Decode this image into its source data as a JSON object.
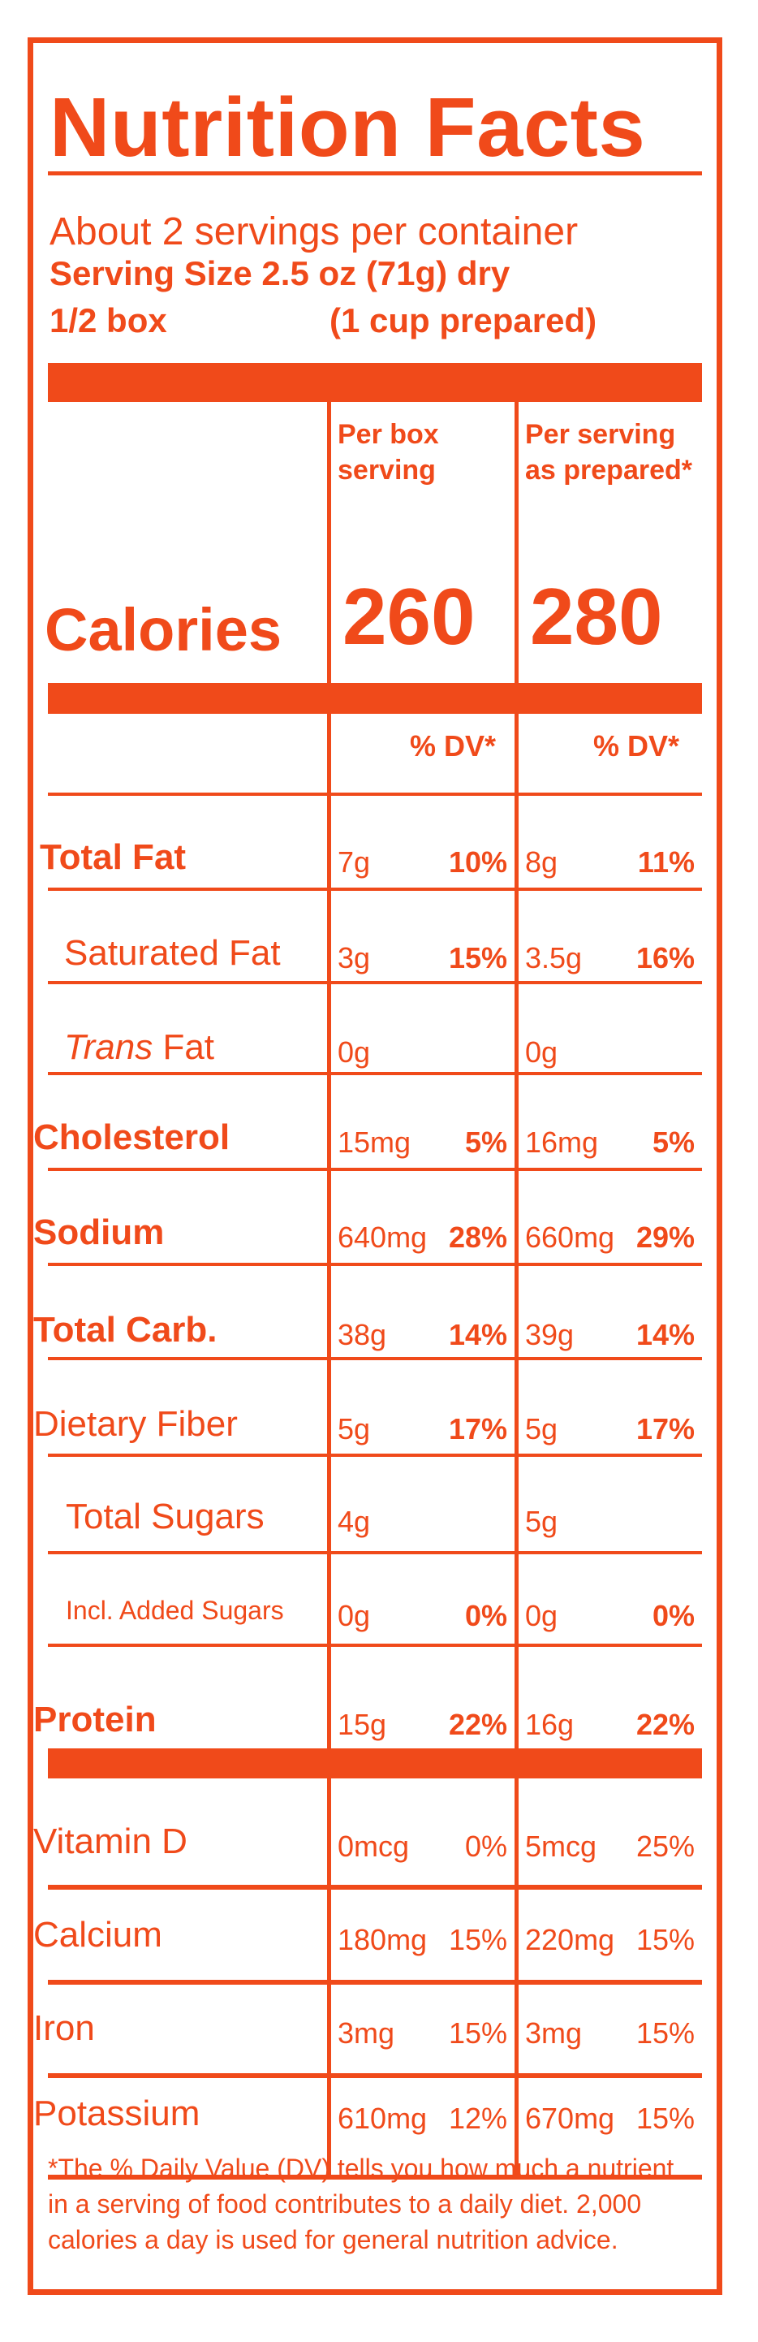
{
  "title": "Nutrition Facts",
  "servings_per_container": "About 2 servings per container",
  "serving_size": "Serving Size 2.5 oz (71g) dry",
  "box_label": "1/2 box",
  "prepared_label": "(1 cup prepared)",
  "col1_header_l1": "Per box",
  "col1_header_l2": "serving",
  "col2_header_l1": "Per serving",
  "col2_header_l2": "as prepared*",
  "calories_label": "Calories",
  "calories_box": "260",
  "calories_prepared": "280",
  "dv_header": "% DV*",
  "nutrients": [
    {
      "name": "Total Fat",
      "box_amt": "7g",
      "box_dv": "10%",
      "prep_amt": "8g",
      "prep_dv": "11%"
    },
    {
      "name": "Saturated Fat",
      "box_amt": "3g",
      "box_dv": "15%",
      "prep_amt": "3.5g",
      "prep_dv": "16%"
    },
    {
      "name_prefix": "Trans",
      "name": "Fat",
      "box_amt": "0g",
      "box_dv": "",
      "prep_amt": "0g",
      "prep_dv": ""
    },
    {
      "name": "Cholesterol",
      "box_amt": "15mg",
      "box_dv": "5%",
      "prep_amt": "16mg",
      "prep_dv": "5%"
    },
    {
      "name": "Sodium",
      "box_amt": "640mg",
      "box_dv": "28%",
      "prep_amt": "660mg",
      "prep_dv": "29%"
    },
    {
      "name": "Total Carb.",
      "box_amt": "38g",
      "box_dv": "14%",
      "prep_amt": "39g",
      "prep_dv": "14%"
    },
    {
      "name": "Dietary Fiber",
      "box_amt": "5g",
      "box_dv": "17%",
      "prep_amt": "5g",
      "prep_dv": "17%"
    },
    {
      "name": "Total Sugars",
      "box_amt": "4g",
      "box_dv": "",
      "prep_amt": "5g",
      "prep_dv": ""
    },
    {
      "name": "Incl. Added Sugars",
      "box_amt": "0g",
      "box_dv": "0%",
      "prep_amt": "0g",
      "prep_dv": "0%"
    },
    {
      "name": "Protein",
      "box_amt": "15g",
      "box_dv": "22%",
      "prep_amt": "16g",
      "prep_dv": "22%"
    }
  ],
  "vitamins": [
    {
      "name": "Vitamin D",
      "box_amt": "0mcg",
      "box_dv": "0%",
      "prep_amt": "5mcg",
      "prep_dv": "25%"
    },
    {
      "name": "Calcium",
      "box_amt": "180mg",
      "box_dv": "15%",
      "prep_amt": "220mg",
      "prep_dv": "15%"
    },
    {
      "name": "Iron",
      "box_amt": "3mg",
      "box_dv": "15%",
      "prep_amt": "3mg",
      "prep_dv": "15%"
    },
    {
      "name": "Potassium",
      "box_amt": "610mg",
      "box_dv": "12%",
      "prep_amt": "670mg",
      "prep_dv": "15%"
    }
  ],
  "footnote": "*The % Daily Value (DV) tells you how much a nutrient in a serving of food contributes to a daily diet. 2,000 calories a day is used for general nutrition advice.",
  "colors": {
    "accent": "#f04a1a",
    "background": "#ffffff"
  }
}
